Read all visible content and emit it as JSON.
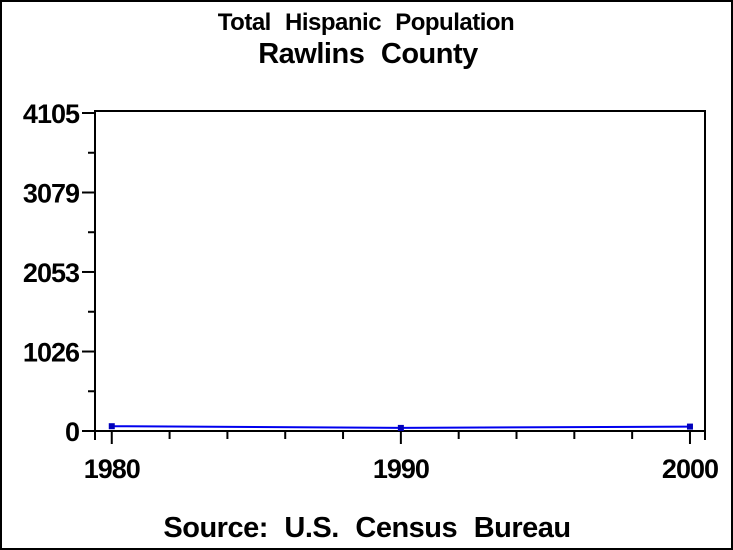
{
  "titles": {
    "line1": "Total Hispanic Population",
    "line2": "Rawlins County"
  },
  "footer": {
    "source_label": "Source: U.S. Census Bureau"
  },
  "colors": {
    "line": "#0000ee",
    "marker": "#0000bb",
    "axis": "#000000",
    "background": "#ffffff"
  },
  "chart_data": {
    "type": "line",
    "title": "Total Hispanic Population",
    "subtitle": "Rawlins County",
    "caption": "Source: U.S. Census Bureau",
    "x": [
      1980,
      1990,
      2000
    ],
    "series": [
      {
        "name": "Total Hispanic Population",
        "color": "#0000ee",
        "marker": "square",
        "values": [
          62,
          40,
          57
        ]
      }
    ],
    "xlabel": "",
    "ylabel": "",
    "x_tick_values": [
      1980,
      1990,
      2000
    ],
    "x_tick_labels": [
      "1980",
      "1990",
      "2000"
    ],
    "x_minor_tick_values": [
      1982,
      1984,
      1986,
      1988,
      1992,
      1994,
      1996,
      1998
    ],
    "y_tick_values": [
      0,
      1026,
      2053,
      3079,
      4105
    ],
    "y_tick_labels": [
      "0",
      "1026",
      "2053",
      "3079",
      "4105"
    ],
    "y_minor_tick_values": [
      513,
      1539.5,
      2566,
      3592
    ],
    "xlim": [
      1979.42,
      2000.52
    ],
    "ylim": [
      0,
      4131
    ],
    "grid": false,
    "frame": true,
    "legend": "none"
  }
}
